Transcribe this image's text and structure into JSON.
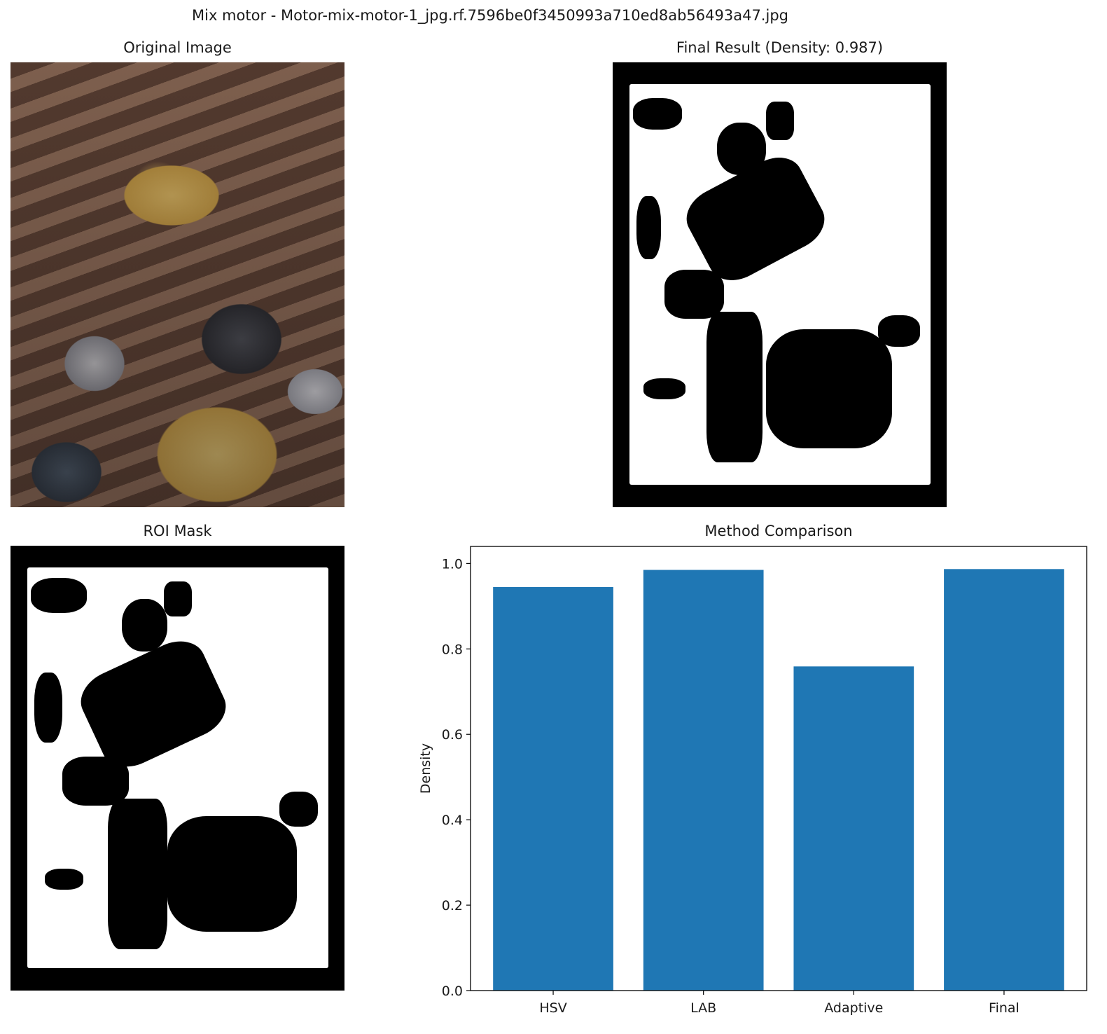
{
  "figure": {
    "suptitle": "Mix motor - Motor-mix-motor-1_jpg.rf.7596be0f3450993a710ed8ab56493a47.jpg"
  },
  "panels": {
    "original": {
      "title": "Original Image"
    },
    "final": {
      "title": "Final Result (Density: 0.987)"
    },
    "roi": {
      "title": "ROI Mask"
    },
    "comparison": {
      "title": "Method Comparison"
    }
  },
  "chart_data": {
    "type": "bar",
    "title": "Method Comparison",
    "categories": [
      "HSV",
      "LAB",
      "Adaptive",
      "Final"
    ],
    "values": [
      0.945,
      0.985,
      0.759,
      0.987
    ],
    "xlabel": "",
    "ylabel": "Density",
    "ylim": [
      0,
      1.04
    ],
    "yticks": [
      "0.0",
      "0.2",
      "0.4",
      "0.6",
      "0.8",
      "1.0"
    ],
    "grid": false,
    "bar_color": "#1f77b4"
  }
}
